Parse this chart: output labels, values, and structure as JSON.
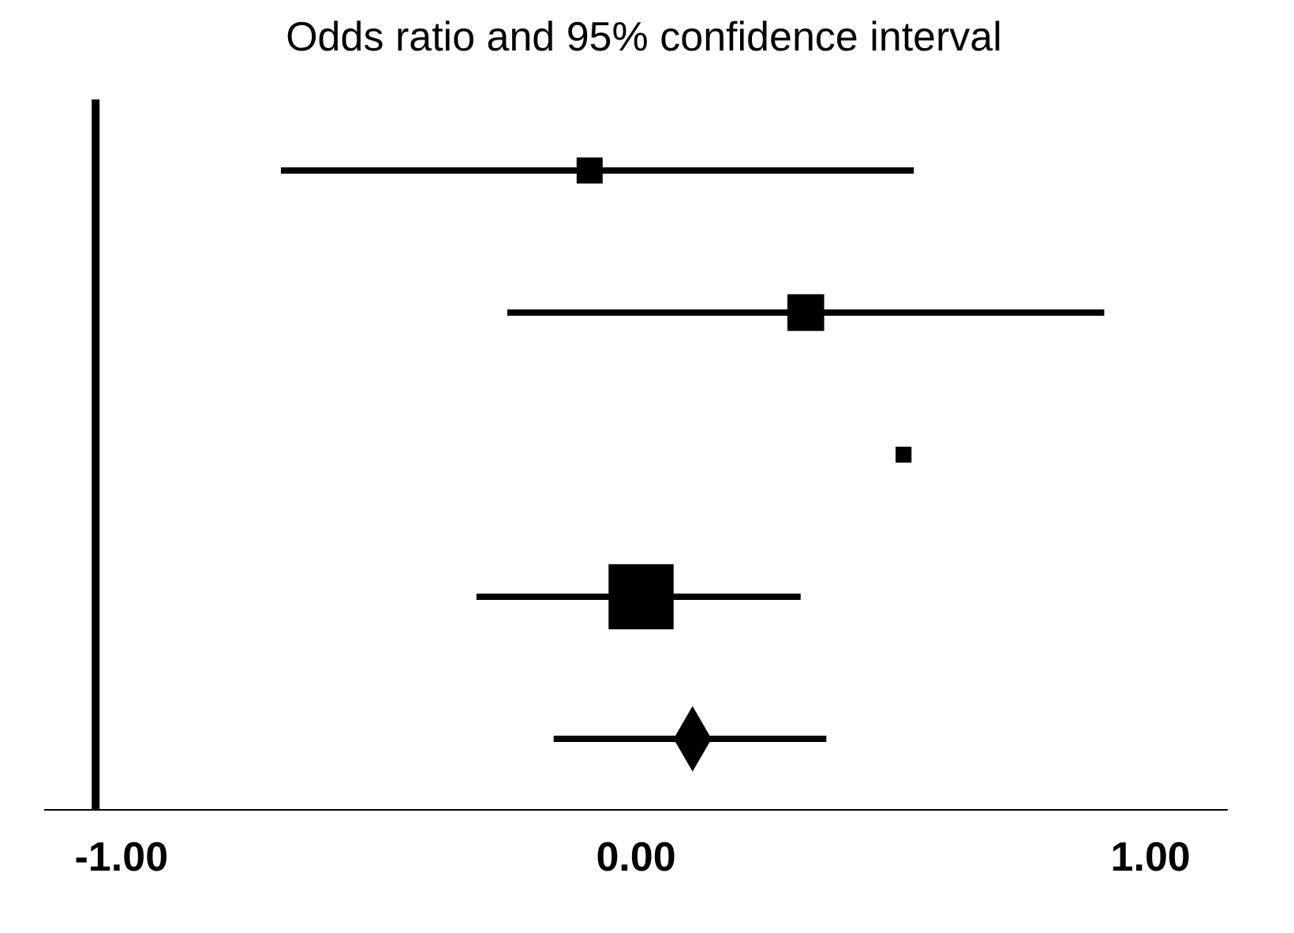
{
  "chart_data": {
    "type": "bubble",
    "title": "Odds ratio and 95% confidence interval",
    "orientation": "horizontal",
    "categories": [
      null,
      null,
      null,
      null,
      null
    ],
    "series": [
      {
        "type": "bubble",
        "color": "#000000",
        "marker": "square",
        "values": [
          -0.09,
          0.33,
          0.52,
          0.01,
          null
        ],
        "sizes": [
          0.16,
          0.32,
          0.06,
          1,
          null
        ],
        "errors": [
          [
            -0.69,
            0.54
          ],
          [
            -0.25,
            0.91
          ],
          null,
          [
            -0.31,
            0.32
          ],
          null
        ]
      },
      {
        "type": "scatter",
        "color": "#000000",
        "marker": "diamond",
        "values": [
          null,
          null,
          null,
          null,
          0.11
        ],
        "errors": [
          null,
          null,
          null,
          null,
          [
            -0.16,
            0.37
          ]
        ]
      }
    ],
    "xlim": [
      -1.15,
      1.15
    ],
    "xticks": [
      {
        "value": -1,
        "label": "-1.00"
      },
      {
        "value": 0,
        "label": "0.00"
      },
      {
        "value": 1,
        "label": "1.00"
      }
    ],
    "ref_lines": [
      {
        "axis": "x",
        "value": -1.05,
        "color": "#000000"
      }
    ],
    "tick_labels": "x",
    "grid": false,
    "legend": false
  }
}
